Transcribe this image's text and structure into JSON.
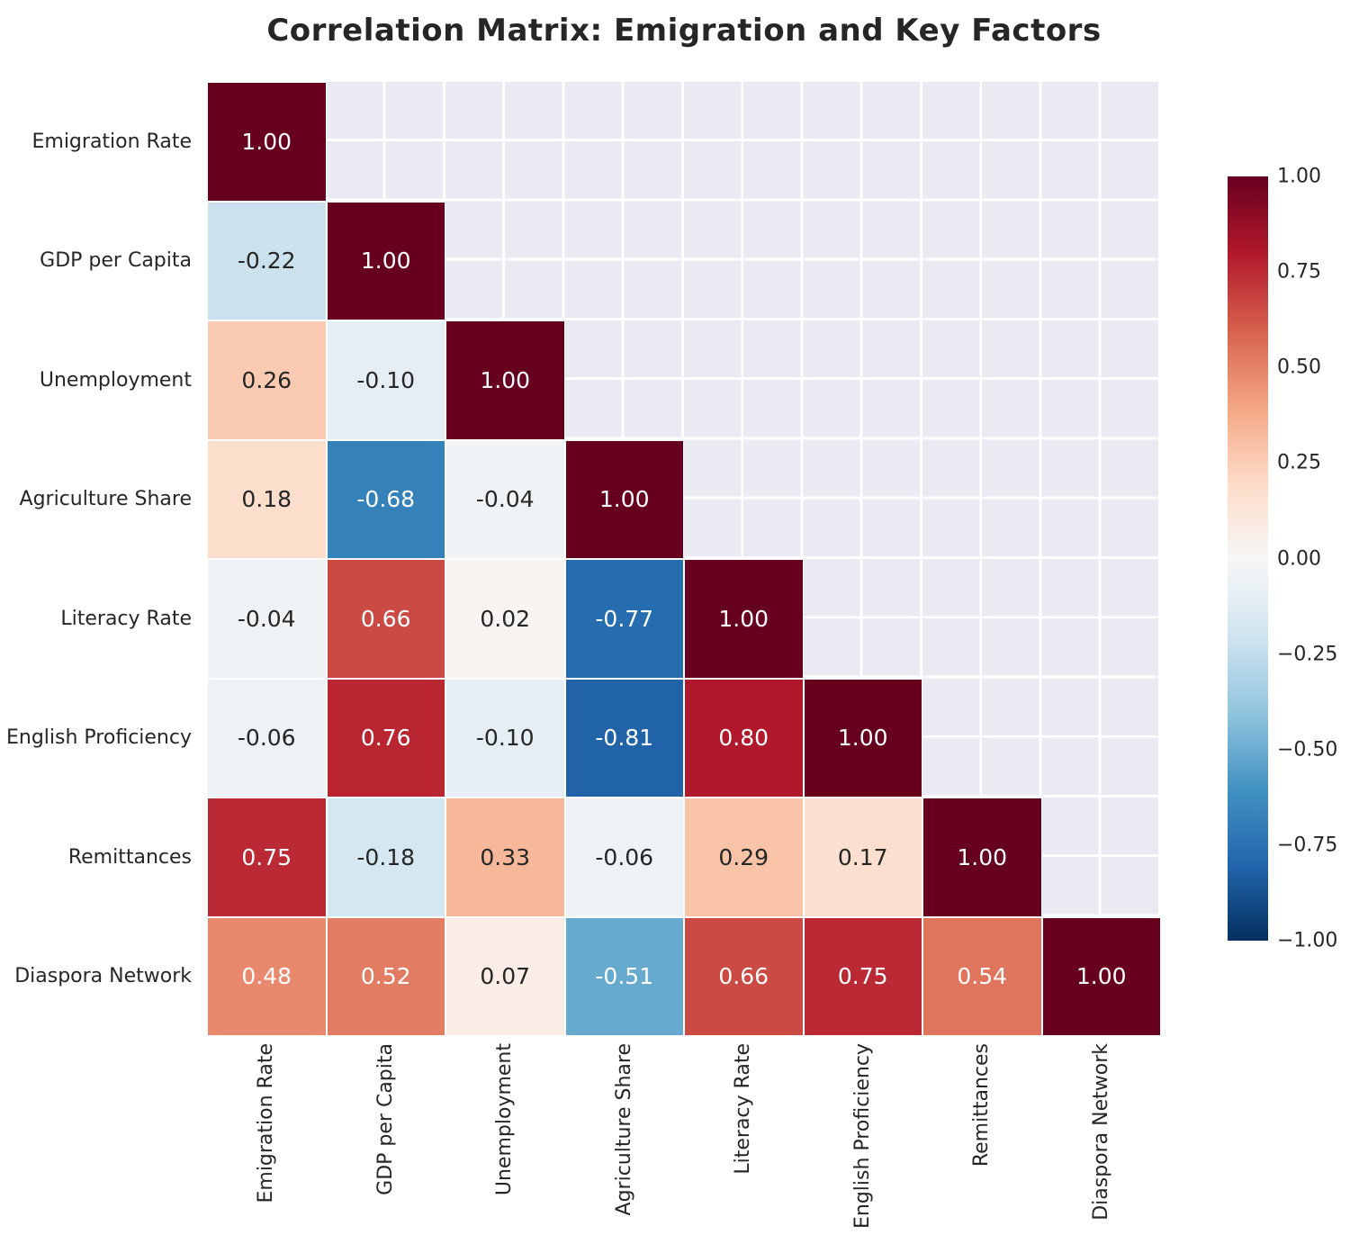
{
  "title": "Correlation Matrix: Emigration and Key Factors",
  "chart_data": {
    "type": "heatmap",
    "title": "Correlation Matrix: Emigration and Key Factors",
    "categories": [
      "Emigration Rate",
      "GDP per Capita",
      "Unemployment",
      "Agriculture Share",
      "Literacy Rate",
      "English Proficiency",
      "Remittances",
      "Diaspora Network"
    ],
    "matrix_lower_triangle": [
      [
        1.0
      ],
      [
        -0.22,
        1.0
      ],
      [
        0.26,
        -0.1,
        1.0
      ],
      [
        0.18,
        -0.68,
        -0.04,
        1.0
      ],
      [
        -0.04,
        0.66,
        0.02,
        -0.77,
        1.0
      ],
      [
        -0.06,
        0.76,
        -0.1,
        -0.81,
        0.8,
        1.0
      ],
      [
        0.75,
        -0.18,
        0.33,
        -0.06,
        0.29,
        0.17,
        1.0
      ],
      [
        0.48,
        0.52,
        0.07,
        -0.51,
        0.66,
        0.75,
        0.54,
        1.0
      ]
    ],
    "mask": "upper-triangle",
    "value_format": "0.00",
    "colormap": "RdBu_r",
    "vmin": -1.0,
    "vmax": 1.0,
    "legend_position": "right-colorbar",
    "grid": true
  },
  "colorbar": {
    "ticks": [
      {
        "label": "1.00",
        "value": 1.0
      },
      {
        "label": "0.75",
        "value": 0.75
      },
      {
        "label": "0.50",
        "value": 0.5
      },
      {
        "label": "0.25",
        "value": 0.25
      },
      {
        "label": "0.00",
        "value": 0.0
      },
      {
        "label": "−0.25",
        "value": -0.25
      },
      {
        "label": "−0.50",
        "value": -0.5
      },
      {
        "label": "−0.75",
        "value": -0.75
      },
      {
        "label": "−1.00",
        "value": -1.0
      }
    ]
  },
  "colors": {
    "cmap_anchors_low_to_high": [
      "#053061",
      "#2166ac",
      "#4393c3",
      "#92c5de",
      "#d1e5f0",
      "#f7f7f7",
      "#fddbc7",
      "#f4a582",
      "#d6604d",
      "#b2182b",
      "#67001f"
    ],
    "masked_bg": "#eaeaf2",
    "grid_line": "#ffffff",
    "text_dark": "#262626",
    "text_light": "#ffffff",
    "figure_bg": "#ffffff"
  }
}
